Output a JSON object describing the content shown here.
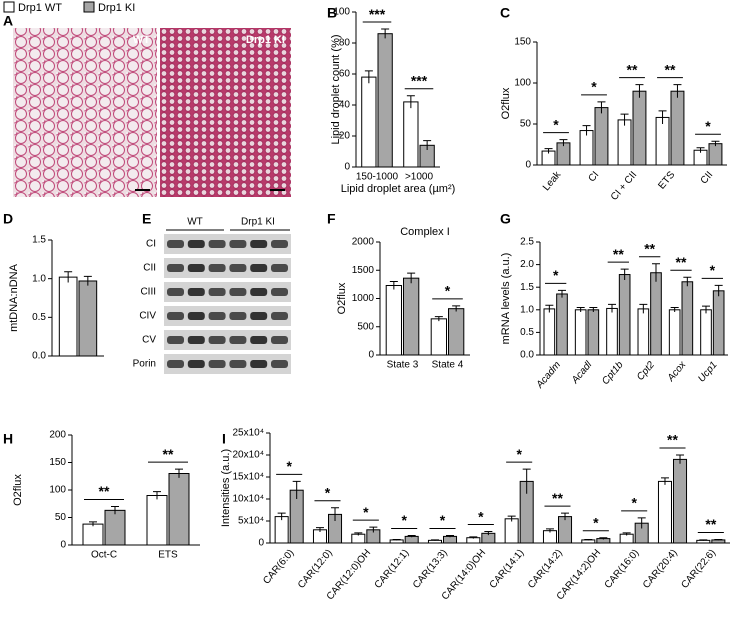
{
  "panel_a": {
    "label": "A",
    "images": [
      "WT",
      "Drp1 KI"
    ]
  },
  "panel_e": {
    "label": "E",
    "groups": [
      "WT",
      "Drp1 KI"
    ],
    "rows": [
      "CI",
      "CII",
      "CIII",
      "CIV",
      "CV",
      "Porin"
    ]
  },
  "chart_data": [
    {
      "panel": "B",
      "type": "bar",
      "ylabel": "Lipid droplet count (%)",
      "xlabel": "Lipid droplet area (µm²)",
      "categories": [
        "150-1000",
        ">1000"
      ],
      "series": [
        {
          "name": "Drp1 WT",
          "color": "#ffffff",
          "values": [
            58,
            42
          ],
          "errors": [
            4,
            4
          ]
        },
        {
          "name": "Drp1 KI",
          "color": "#a6a6a6",
          "values": [
            86,
            14
          ],
          "errors": [
            3,
            3
          ]
        }
      ],
      "annotations": [
        "***",
        "***"
      ],
      "ylim": [
        0,
        100
      ],
      "yticks": [
        0,
        20,
        40,
        60,
        80,
        100
      ]
    },
    {
      "panel": "C",
      "type": "bar",
      "ylabel": "O2flux",
      "categories": [
        "Leak",
        "CI",
        "CI + CII",
        "ETS",
        "CII"
      ],
      "series": [
        {
          "color": "#ffffff",
          "values": [
            17,
            42,
            55,
            58,
            18
          ],
          "errors": [
            3,
            6,
            7,
            8,
            3
          ]
        },
        {
          "color": "#a6a6a6",
          "values": [
            27,
            70,
            90,
            90,
            26
          ],
          "errors": [
            4,
            7,
            8,
            8,
            3
          ]
        }
      ],
      "annotations": [
        "*",
        "*",
        "**",
        "**",
        "*"
      ],
      "ylim": [
        0,
        150
      ],
      "yticks": [
        0,
        50,
        100,
        150
      ]
    },
    {
      "panel": "D",
      "type": "bar",
      "ylabel": "mtDNA:nDNA",
      "categories": [
        null
      ],
      "series": [
        {
          "color": "#ffffff",
          "values": [
            1.02
          ],
          "errors": [
            0.07
          ]
        },
        {
          "color": "#a6a6a6",
          "values": [
            0.97
          ],
          "errors": [
            0.06
          ]
        }
      ],
      "ylim": [
        0,
        1.5
      ],
      "yticks": [
        {
          "value": 0,
          "label": "0.0"
        },
        0.5,
        {
          "value": 1,
          "label": "1.0"
        },
        1.5
      ]
    },
    {
      "panel": "F",
      "type": "bar",
      "title": "Complex I",
      "ylabel": "O2flux",
      "categories": [
        "State 3",
        "State 4"
      ],
      "series": [
        {
          "color": "#ffffff",
          "values": [
            1230,
            640
          ],
          "errors": [
            70,
            40
          ]
        },
        {
          "color": "#a6a6a6",
          "values": [
            1360,
            820
          ],
          "errors": [
            90,
            50
          ]
        }
      ],
      "annotations": [
        null,
        "*"
      ],
      "ylim": [
        0,
        2000
      ],
      "yticks": [
        0,
        500,
        1000,
        1500,
        2000
      ]
    },
    {
      "panel": "G",
      "type": "bar",
      "ylabel": "mRNA levels (a.u.)",
      "categories": [
        "Acadm",
        "Acadl",
        "Cpt1b",
        "Cpt2",
        "Acox",
        "Ucp1"
      ],
      "series": [
        {
          "color": "#ffffff",
          "values": [
            1.02,
            1.0,
            1.03,
            1.02,
            1.0,
            1.0
          ],
          "errors": [
            0.08,
            0.05,
            0.09,
            0.1,
            0.05,
            0.08
          ]
        },
        {
          "color": "#a6a6a6",
          "values": [
            1.35,
            1.0,
            1.78,
            1.82,
            1.62,
            1.42
          ],
          "errors": [
            0.08,
            0.05,
            0.12,
            0.2,
            0.1,
            0.12
          ]
        }
      ],
      "annotations": [
        "*",
        null,
        "**",
        "**",
        "**",
        "*"
      ],
      "ylim": [
        0,
        2.5
      ],
      "yticks": [
        {
          "value": 0,
          "label": "0.0"
        },
        0.5,
        {
          "value": 1,
          "label": "1.0"
        },
        1.5,
        {
          "value": 2,
          "label": "2.0"
        },
        2.5
      ]
    },
    {
      "panel": "H",
      "type": "bar",
      "ylabel": "O2flux",
      "categories": [
        "Oct-C",
        "ETS"
      ],
      "series": [
        {
          "color": "#ffffff",
          "values": [
            38,
            90
          ],
          "errors": [
            4,
            7
          ]
        },
        {
          "color": "#a6a6a6",
          "values": [
            63,
            130
          ],
          "errors": [
            7,
            8
          ]
        }
      ],
      "annotations": [
        "**",
        "**"
      ],
      "ylim": [
        0,
        200
      ],
      "yticks": [
        0,
        50,
        100,
        150,
        200
      ]
    },
    {
      "panel": "I",
      "type": "bar",
      "ylabel": "Intensities (a.u.)",
      "categories": [
        "CAR(6:0)",
        "CAR(12:0)",
        "CAR(12:0)OH",
        "CAR(12:1)",
        "CAR(13:3)",
        "CAR(14:0)OH",
        "CAR(14:1)",
        "CAR(14:2)",
        "CAR(14:2)OH",
        "CAR(16:0)",
        "CAR(20:4)",
        "CAR(22:6)"
      ],
      "series": [
        {
          "color": "#ffffff",
          "values": [
            60000,
            30000,
            20000,
            7000,
            6000,
            12000,
            55000,
            28000,
            7000,
            20000,
            140000,
            6000
          ],
          "errors": [
            8000,
            5000,
            3000,
            1000,
            1000,
            2000,
            6000,
            4000,
            1000,
            3000,
            8000,
            1000
          ]
        },
        {
          "color": "#a6a6a6",
          "values": [
            120000,
            65000,
            30000,
            15000,
            15000,
            22000,
            140000,
            60000,
            10000,
            45000,
            190000,
            7000
          ],
          "errors": [
            20000,
            15000,
            6000,
            2000,
            2000,
            4000,
            28000,
            8000,
            2000,
            12000,
            10000,
            1000
          ]
        }
      ],
      "annotations": [
        "*",
        "*",
        "*",
        "*",
        "*",
        "*",
        "*",
        "**",
        "*",
        "*",
        "**",
        "**"
      ],
      "ylim": [
        0,
        250000
      ],
      "yticks": [
        0,
        {
          "value": 50000,
          "label": "5x10⁴"
        },
        {
          "value": 100000,
          "label": "10x10⁴"
        },
        {
          "value": 150000,
          "label": "15x10⁴"
        },
        {
          "value": 200000,
          "label": "20x10⁴"
        },
        {
          "value": 250000,
          "label": "25x10⁴"
        }
      ]
    }
  ]
}
